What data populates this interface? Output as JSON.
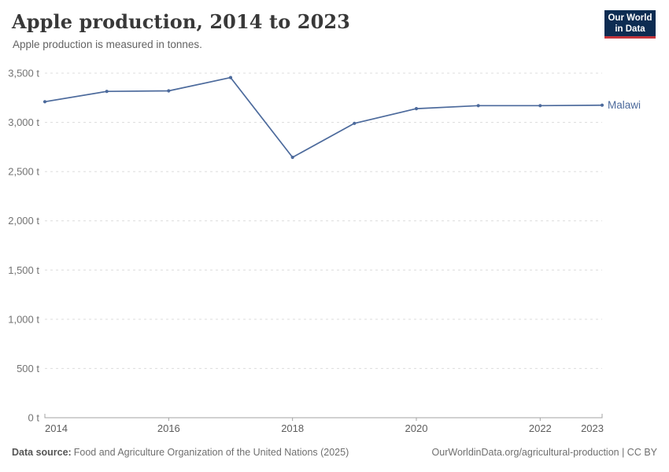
{
  "header": {
    "title": "Apple production, 2014 to 2023",
    "subtitle": "Apple production is measured in tonnes.",
    "logo": {
      "line1": "Our World",
      "line2": "in Data"
    }
  },
  "chart_data": {
    "type": "line",
    "title": "Apple production, 2014 to 2023",
    "unit": "tonnes",
    "x": [
      2014,
      2015,
      2016,
      2017,
      2018,
      2019,
      2020,
      2021,
      2022,
      2023
    ],
    "series": [
      {
        "name": "Malawi",
        "values": [
          3210,
          3315,
          3320,
          3455,
          2645,
          2990,
          3140,
          3170,
          3170,
          3175
        ]
      }
    ],
    "xlim": [
      2014,
      2023
    ],
    "ylim": [
      0,
      3500
    ],
    "grid": "horizontal-dashed",
    "legend_position": "right-entity-label",
    "y_axis": {
      "ticks": [
        {
          "v": 0,
          "label": "0 t"
        },
        {
          "v": 500,
          "label": "500 t"
        },
        {
          "v": 1000,
          "label": "1,000 t"
        },
        {
          "v": 1500,
          "label": "1,500 t"
        },
        {
          "v": 2000,
          "label": "2,000 t"
        },
        {
          "v": 2500,
          "label": "2,500 t"
        },
        {
          "v": 3000,
          "label": "3,000 t"
        },
        {
          "v": 3500,
          "label": "3,500 t"
        }
      ]
    },
    "x_axis": {
      "ticks": [
        {
          "v": 2014,
          "label": "2014"
        },
        {
          "v": 2016,
          "label": "2016"
        },
        {
          "v": 2018,
          "label": "2018"
        },
        {
          "v": 2020,
          "label": "2020"
        },
        {
          "v": 2022,
          "label": "2022"
        },
        {
          "v": 2023,
          "label": "2023"
        }
      ]
    }
  },
  "colors": {
    "line": "#4C6A9C",
    "entity_label": "#4C6A9C",
    "grid": "#dcdcdc",
    "axis": "#a3a3a3",
    "y_tick_text": "#737373",
    "x_tick_text": "#5d5d5d",
    "logo_bg": "#0d2c52",
    "logo_red": "#c5353c"
  },
  "footer": {
    "source_label": "Data source:",
    "source_text": "Food and Agriculture Organization of the United Nations (2025)",
    "link_text": "OurWorldinData.org/agricultural-production | CC BY"
  }
}
